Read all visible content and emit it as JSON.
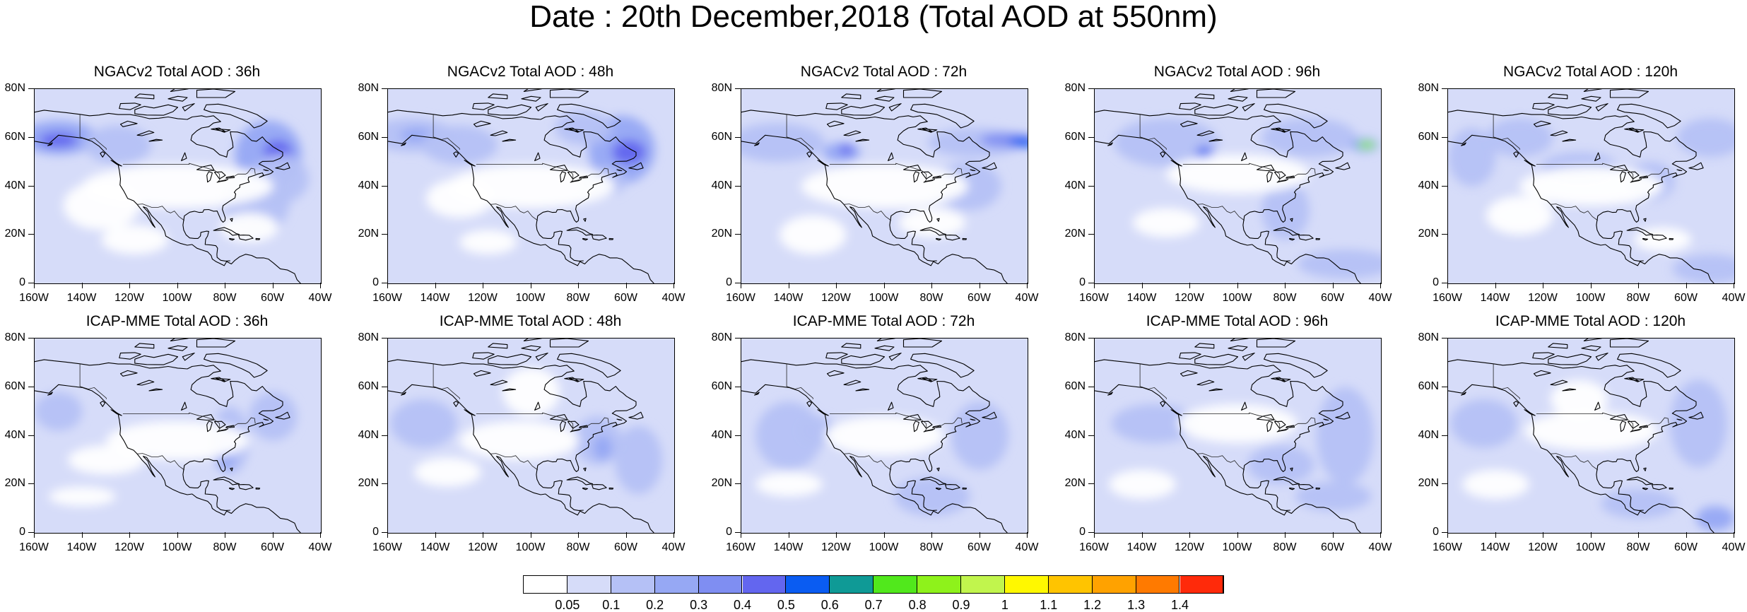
{
  "title": "Date : 20th December,2018 (Total AOD at 550nm)",
  "columns": [
    "36h",
    "48h",
    "72h",
    "96h",
    "120h"
  ],
  "rows": [
    {
      "model": "NGACv2",
      "titles": [
        "NGACv2 Total AOD : 36h",
        "NGACv2 Total AOD : 48h",
        "NGACv2 Total AOD : 72h",
        "NGACv2 Total AOD : 96h",
        "NGACv2 Total AOD : 120h"
      ]
    },
    {
      "model": "ICAP-MME",
      "titles": [
        "ICAP-MME Total AOD : 36h",
        "ICAP-MME Total AOD : 48h",
        "ICAP-MME Total AOD : 72h",
        "ICAP-MME Total AOD : 96h",
        "ICAP-MME Total AOD : 120h"
      ]
    }
  ],
  "lat_ticks": [
    "0",
    "20N",
    "40N",
    "60N",
    "80N"
  ],
  "lon_ticks": [
    "160W",
    "140W",
    "120W",
    "100W",
    "80W",
    "60W",
    "40W"
  ],
  "map_extent": {
    "lon": [
      -160,
      -40
    ],
    "lat": [
      0,
      80
    ]
  },
  "colorbar": {
    "labels": [
      "0.05",
      "0.1",
      "0.2",
      "0.3",
      "0.4",
      "0.5",
      "0.6",
      "0.7",
      "0.8",
      "0.9",
      "1",
      "1.1",
      "1.2",
      "1.3",
      "1.4"
    ],
    "colors": [
      "#ffffff",
      "#d6dcf9",
      "#b5c1f6",
      "#96a8f4",
      "#7f8ef2",
      "#6366ef",
      "#0a5cf2",
      "#0f9a96",
      "#51e81c",
      "#8ef21b",
      "#c1f54d",
      "#fff800",
      "#ffc400",
      "#ffa200",
      "#ff7a00",
      "#ff2a0a"
    ]
  }
}
